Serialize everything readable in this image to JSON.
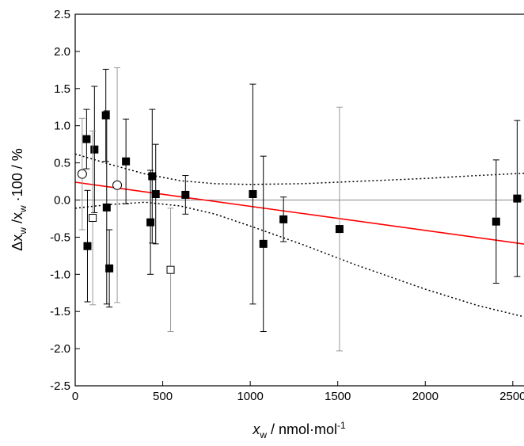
{
  "chart_data": {
    "type": "scatter",
    "x_label": [
      "x",
      "w",
      " / nmol·mol",
      "-1"
    ],
    "y_label": [
      "Δx",
      "w",
      " /x",
      "w",
      " ·100  / %"
    ],
    "xlim": [
      0,
      2650
    ],
    "ylim": [
      -2.5,
      2.5
    ],
    "xticks": [
      0,
      500,
      1000,
      1500,
      2000,
      2500
    ],
    "yticks": [
      {
        "value": 2.5,
        "label": "2.5"
      },
      {
        "value": 2,
        "label": "2.0"
      },
      {
        "value": 1.5,
        "label": "1.5"
      },
      {
        "value": 1,
        "label": "1.0"
      },
      {
        "value": 0.5,
        "label": "0.5"
      },
      {
        "value": 0,
        "label": "0.0"
      },
      {
        "value": -0.5,
        "label": "-0.5"
      },
      {
        "value": -1,
        "label": "-1.0"
      },
      {
        "value": -1.5,
        "label": "-1.5"
      },
      {
        "value": -2,
        "label": "-2.0"
      },
      {
        "value": -2.5,
        "label": "-2.5"
      }
    ],
    "reference_line": 0,
    "series": [
      {
        "marker": "square-filled",
        "color": "#000000",
        "error_color": "#000000",
        "x": [
          65,
          70,
          110,
          175,
          180,
          195,
          290,
          430,
          440,
          460,
          630,
          1015,
          1075,
          1190,
          2405,
          2525
        ],
        "values": [
          0.82,
          -0.62,
          0.68,
          1.14,
          -0.1,
          -0.92,
          0.52,
          -0.3,
          0.32,
          0.08,
          0.07,
          0.08,
          -0.59,
          -0.26,
          -0.29,
          0.02
        ],
        "errors": [
          0.4,
          0.75,
          0.85,
          0.62,
          1.3,
          0.52,
          0.57,
          0.7,
          0.9,
          0.67,
          0.26,
          1.48,
          1.18,
          0.3,
          0.83,
          1.05
        ]
      },
      {
        "marker": "square-filled",
        "color": "#000000",
        "error_color": "#999999",
        "x": [
          1510
        ],
        "values": [
          -0.39
        ],
        "errors": [
          1.64
        ]
      },
      {
        "marker": "circle-open",
        "color": "#000000",
        "error_color": "#999999",
        "x": [
          40,
          240
        ],
        "values": [
          0.35,
          0.2
        ],
        "errors": [
          0.75,
          1.58
        ]
      },
      {
        "marker": "square-open",
        "color": "#000000",
        "error_color": "#999999",
        "x": [
          100,
          545
        ],
        "values": [
          -0.24,
          -0.94
        ],
        "errors": [
          1.17,
          0.83
        ]
      }
    ],
    "lines": [
      {
        "color": "#ff0000",
        "dash": false,
        "x": [
          0,
          2650
        ],
        "values": [
          0.24,
          -0.62
        ]
      },
      {
        "color": "#000000",
        "dash": true,
        "x": [
          0,
          200,
          400,
          600,
          800,
          1000,
          1300,
          1600,
          2000,
          2300,
          2650
        ],
        "values": [
          0.62,
          0.48,
          0.35,
          0.26,
          0.22,
          0.21,
          0.22,
          0.25,
          0.29,
          0.33,
          0.37
        ]
      },
      {
        "color": "#000000",
        "dash": true,
        "x": [
          0,
          200,
          400,
          600,
          800,
          1000,
          1300,
          1600,
          2000,
          2300,
          2650
        ],
        "values": [
          -0.11,
          -0.06,
          -0.03,
          -0.08,
          -0.19,
          -0.35,
          -0.6,
          -0.87,
          -1.2,
          -1.42,
          -1.62
        ]
      }
    ]
  }
}
